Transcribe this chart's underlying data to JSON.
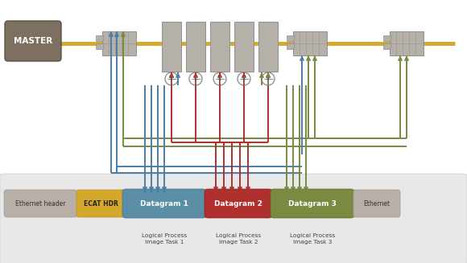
{
  "white": "#ffffff",
  "master_color": "#7d7060",
  "master_text": "MASTER",
  "device_color": "#b5b0a8",
  "eth_header_color": "#b8b0a8",
  "ecat_hdr_color": "#d4a82a",
  "datagram1_color": "#5b8fa8",
  "datagram2_color": "#b03030",
  "datagram3_color": "#7a8a40",
  "arrow_blue": "#4a7fa8",
  "arrow_red": "#b03030",
  "arrow_green": "#7a8a40",
  "cable_yellow": "#d4a82a",
  "bottom_panel_color": "#e8e8e8",
  "grid_line": "#909090",
  "labels": {
    "ethernet_header": "Ethernet header",
    "ecat_hdr": "ECAT HDR",
    "datagram1": "Datagram 1",
    "datagram2": "Datagram 2",
    "datagram3": "Datagram 3",
    "ethernet": "Ethernet",
    "lpi1": "Logical Process\nImage Task 1",
    "lpi2": "Logical Process\nImage Task 2",
    "lpi3": "Logical Process\nImage Task 3"
  }
}
